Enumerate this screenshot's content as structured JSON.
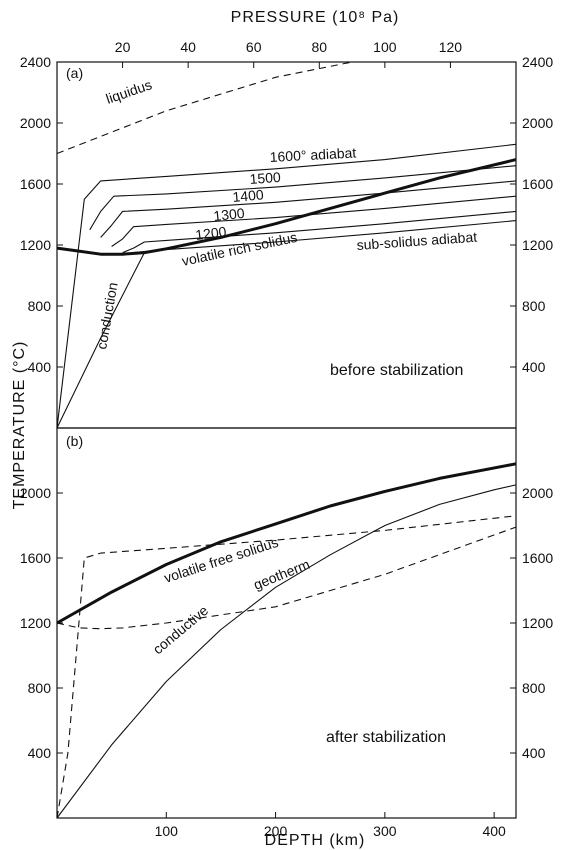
{
  "chart_data": [
    {
      "type": "line",
      "panel_label": "(a)",
      "note": "before stabilization",
      "xlabel": "DEPTH (km)",
      "ylabel": "TEMPERATURE (°C)",
      "top_axis_label": "PRESSURE (10⁸ Pa)",
      "xlim": [
        0,
        420
      ],
      "ylim": [
        0,
        2400
      ],
      "x_ticks": [],
      "y_ticks": [
        400,
        800,
        1200,
        1600,
        2000,
        2400
      ],
      "y_tick_labels": [
        "400",
        "800",
        "1200",
        "1600",
        "2000",
        "2400"
      ],
      "y_ticks_right": [
        "400",
        "800",
        "1200",
        "1600",
        "2000",
        "2400"
      ],
      "top_ticks": [
        20,
        40,
        60,
        80,
        100,
        120
      ],
      "top_tick_labels": [
        "20",
        "40",
        "60",
        "80",
        "100",
        "120"
      ],
      "grid": false,
      "series": [
        {
          "name": "liquidus",
          "style": "dashed",
          "weight": "thin",
          "x": [
            0,
            100,
            200,
            270
          ],
          "y": [
            1800,
            2080,
            2300,
            2400
          ]
        },
        {
          "name": "1600° adiabat",
          "style": "solid",
          "weight": "thin",
          "x": [
            0,
            25,
            40,
            100,
            200,
            300,
            420
          ],
          "y": [
            0,
            1500,
            1620,
            1650,
            1700,
            1760,
            1860
          ]
        },
        {
          "name": "1500",
          "style": "solid",
          "weight": "thin",
          "x": [
            30,
            40,
            52,
            100,
            200,
            300,
            420
          ],
          "y": [
            1300,
            1420,
            1520,
            1535,
            1580,
            1640,
            1720
          ]
        },
        {
          "name": "1400",
          "style": "solid",
          "weight": "thin",
          "x": [
            40,
            50,
            60,
            100,
            200,
            300,
            420
          ],
          "y": [
            1250,
            1330,
            1420,
            1435,
            1480,
            1540,
            1620
          ]
        },
        {
          "name": "1300",
          "style": "solid",
          "weight": "thin",
          "x": [
            50,
            60,
            70,
            100,
            200,
            300,
            420
          ],
          "y": [
            1190,
            1240,
            1320,
            1335,
            1380,
            1440,
            1520
          ]
        },
        {
          "name": "1200",
          "style": "solid",
          "weight": "thin",
          "x": [
            60,
            70,
            80,
            100,
            200,
            300,
            420
          ],
          "y": [
            1150,
            1180,
            1220,
            1230,
            1280,
            1340,
            1420
          ]
        },
        {
          "name": "sub-solidus adiabat",
          "style": "solid",
          "weight": "thin",
          "x": [
            70,
            100,
            200,
            300,
            420
          ],
          "y": [
            1150,
            1170,
            1220,
            1280,
            1360
          ]
        },
        {
          "name": "conduction",
          "style": "solid",
          "weight": "thin",
          "x": [
            0,
            40,
            80
          ],
          "y": [
            0,
            590,
            1150
          ]
        },
        {
          "name": "volatile rich solidus",
          "style": "solid",
          "weight": "thick",
          "x": [
            0,
            20,
            40,
            60,
            80,
            100,
            150,
            200,
            250,
            300,
            350,
            420
          ],
          "y": [
            1180,
            1160,
            1140,
            1140,
            1150,
            1175,
            1250,
            1340,
            1440,
            1540,
            1640,
            1760
          ]
        }
      ]
    },
    {
      "type": "line",
      "panel_label": "(b)",
      "note": "after stabilization",
      "xlabel": "DEPTH (km)",
      "ylabel": "TEMPERATURE (°C)",
      "xlim": [
        0,
        420
      ],
      "ylim": [
        0,
        2400
      ],
      "x_ticks": [
        100,
        200,
        300,
        400
      ],
      "x_tick_labels": [
        "100",
        "200",
        "300",
        "400"
      ],
      "y_ticks": [
        400,
        800,
        1200,
        1600,
        2000
      ],
      "y_tick_labels": [
        "400",
        "800",
        "1200",
        "1600",
        "2000"
      ],
      "y_ticks_right": [
        "400",
        "800",
        "1200",
        "1600",
        "2000"
      ],
      "grid": false,
      "series": [
        {
          "name": "volatile free solidus",
          "style": "solid",
          "weight": "thick",
          "x": [
            0,
            50,
            100,
            150,
            200,
            250,
            300,
            350,
            420
          ],
          "y": [
            1200,
            1390,
            1560,
            1700,
            1810,
            1920,
            2010,
            2090,
            2180
          ]
        },
        {
          "name": "conductive geotherm",
          "style": "solid",
          "weight": "thin",
          "x": [
            0,
            50,
            100,
            150,
            200,
            250,
            300,
            350,
            400,
            420
          ],
          "y": [
            0,
            450,
            840,
            1160,
            1420,
            1620,
            1800,
            1930,
            2020,
            2050
          ]
        },
        {
          "name": "",
          "style": "dashed",
          "weight": "thin",
          "x": [
            0,
            10,
            20,
            25,
            40,
            100,
            200,
            300,
            420
          ],
          "y": [
            0,
            400,
            1200,
            1600,
            1630,
            1660,
            1710,
            1770,
            1860
          ]
        },
        {
          "name": "",
          "style": "dashed",
          "weight": "thin",
          "x": [
            0,
            20,
            40,
            60,
            100,
            200,
            300,
            420
          ],
          "y": [
            1200,
            1170,
            1165,
            1170,
            1200,
            1300,
            1500,
            1790
          ]
        }
      ]
    }
  ],
  "labels": {
    "liquidus": "liquidus",
    "adiabat_1600": "1600° adiabat",
    "adiabat_1500": "1500",
    "adiabat_1400": "1400",
    "adiabat_1300": "1300",
    "adiabat_1200": "1200",
    "sub_solidus": "sub-solidus adiabat",
    "volatile_rich": "volatile rich solidus",
    "conduction": "conduction",
    "volatile_free": "volatile free solidus",
    "conductive": "conductive",
    "geotherm": "geotherm"
  }
}
